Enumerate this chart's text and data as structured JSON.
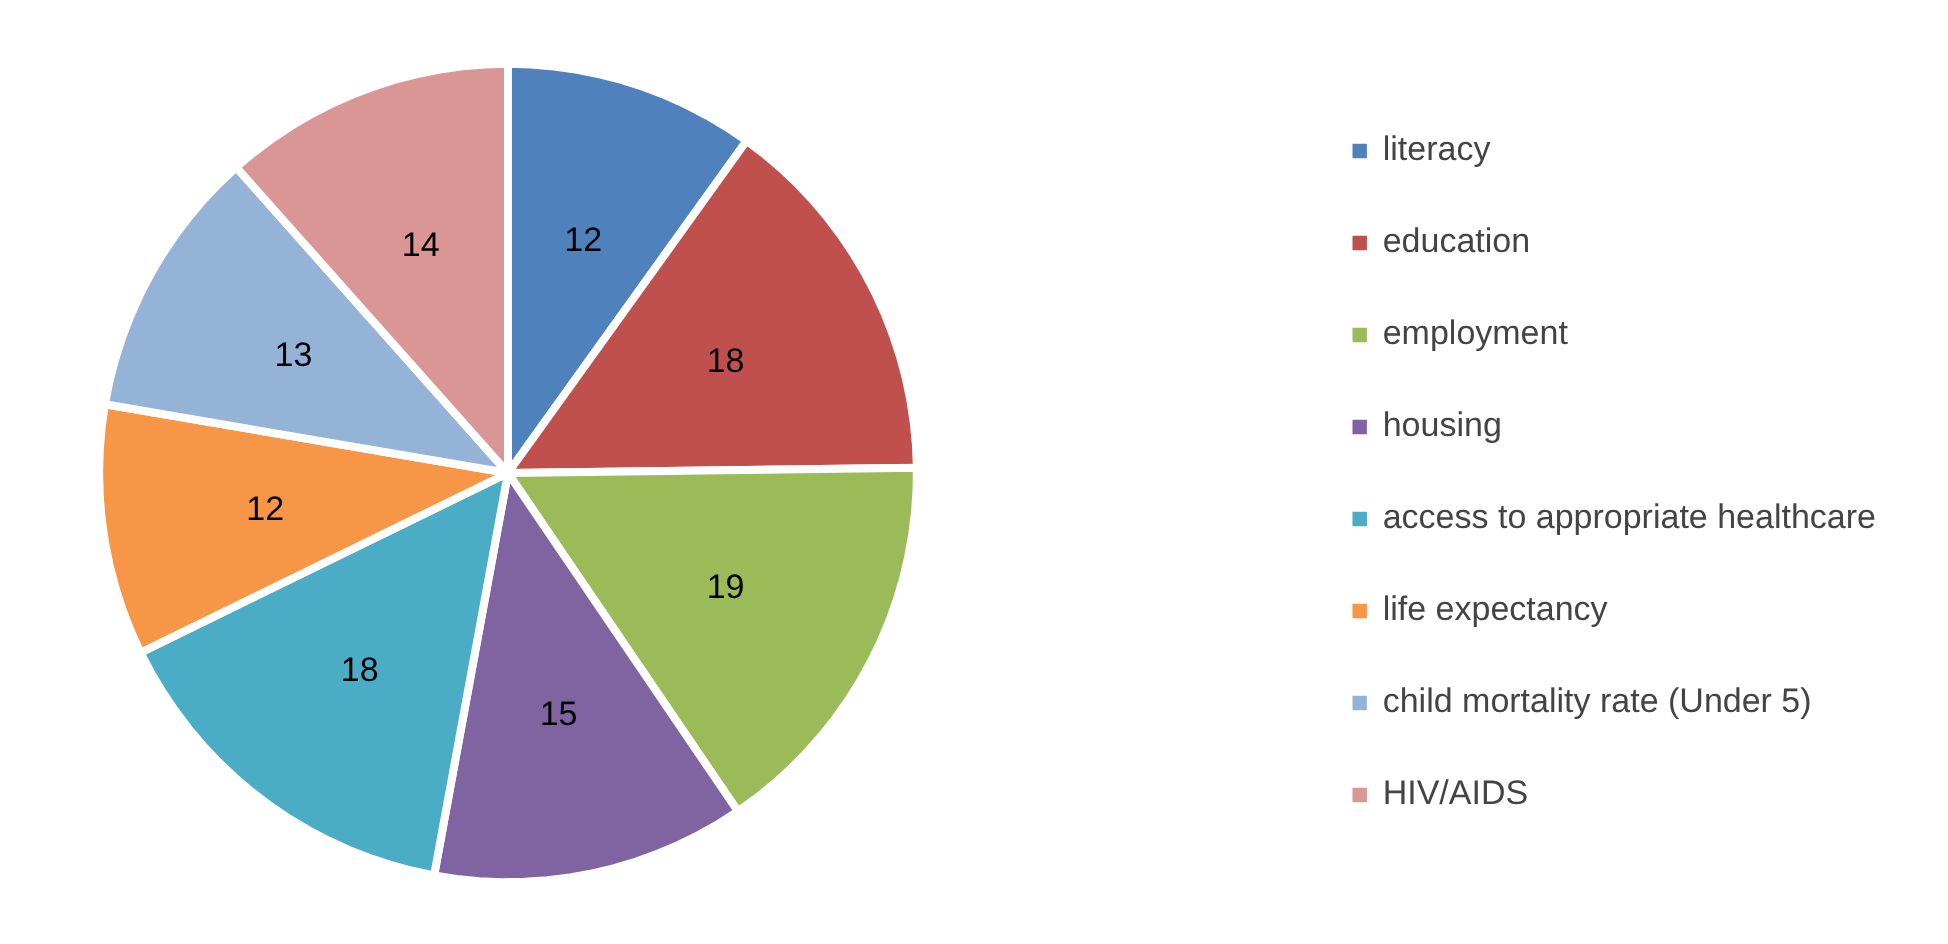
{
  "chart_data": {
    "type": "pie",
    "categories": [
      "literacy",
      "education",
      "employment",
      "housing",
      "access to appropriate healthcare",
      "life expectancy",
      "child mortality rate (Under 5)",
      "HIV/AIDS"
    ],
    "values": [
      12,
      18,
      19,
      15,
      18,
      12,
      13,
      14
    ],
    "colors": [
      "#4f81bd",
      "#c0504d",
      "#9bbb59",
      "#8064a2",
      "#4bacc6",
      "#f79646",
      "#95b3d7",
      "#d99694"
    ],
    "data_labels": true,
    "legend": "right"
  }
}
